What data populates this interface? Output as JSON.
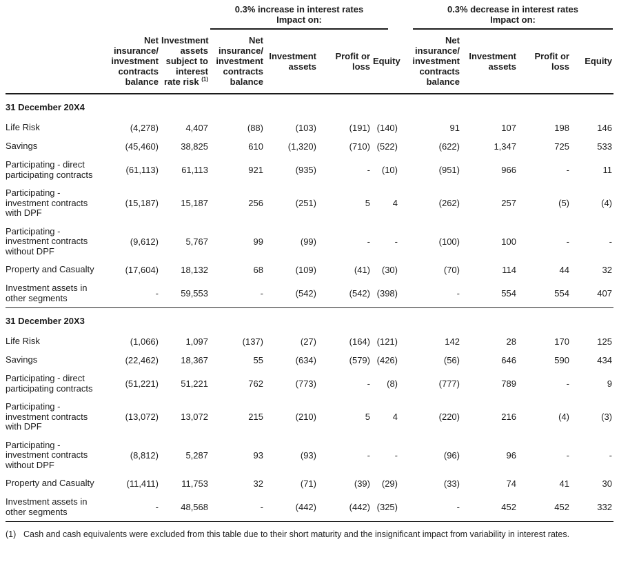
{
  "table": {
    "group_headers": [
      {
        "title": "0.3% increase in interest rates",
        "subtitle": "Impact on:"
      },
      {
        "title": "0.3% decrease in interest rates",
        "subtitle": "Impact on:"
      }
    ],
    "columns": [
      {
        "id": "net-insurance-investment-contracts-balance-base",
        "label": "Net insurance/ investment contracts balance",
        "sup": ""
      },
      {
        "id": "investment-assets-subject-to-interest-rate-risk",
        "label": "Investment assets subject to interest rate risk",
        "sup": "(1)"
      },
      {
        "id": "net-insurance-investment-contracts-balance-increase",
        "label": "Net insurance/ investment contracts balance",
        "sup": ""
      },
      {
        "id": "investment-assets-increase",
        "label": "Investment assets",
        "sup": ""
      },
      {
        "id": "profit-or-loss-increase",
        "label": "Profit or loss",
        "sup": ""
      },
      {
        "id": "equity-increase",
        "label": "Equity",
        "sup": ""
      },
      {
        "id": "net-insurance-investment-contracts-balance-decrease",
        "label": "Net insurance/ investment contracts balance",
        "sup": ""
      },
      {
        "id": "investment-assets-decrease",
        "label": "Investment assets",
        "sup": ""
      },
      {
        "id": "profit-or-loss-decrease",
        "label": "Profit or loss",
        "sup": ""
      },
      {
        "id": "equity-decrease",
        "label": "Equity",
        "sup": ""
      }
    ],
    "sections": [
      {
        "title": "31 December 20X4",
        "rows": [
          {
            "label": "Life Risk",
            "values": [
              "(4,278)",
              "4,407",
              "(88)",
              "(103)",
              "(191)",
              "(140)",
              "91",
              "107",
              "198",
              "146"
            ]
          },
          {
            "label": "Savings",
            "values": [
              "(45,460)",
              "38,825",
              "610",
              "(1,320)",
              "(710)",
              "(522)",
              "(622)",
              "1,347",
              "725",
              "533"
            ]
          },
          {
            "label": "Participating - direct participating contracts",
            "values": [
              "(61,113)",
              "61,113",
              "921",
              "(935)",
              "-",
              "(10)",
              "(951)",
              "966",
              "-",
              "11"
            ]
          },
          {
            "label": "Participating - investment contracts with DPF",
            "values": [
              "(15,187)",
              "15,187",
              "256",
              "(251)",
              "5",
              "4",
              "(262)",
              "257",
              "(5)",
              "(4)"
            ]
          },
          {
            "label": "Participating - investment contracts without DPF",
            "values": [
              "(9,612)",
              "5,767",
              "99",
              "(99)",
              "-",
              "-",
              "(100)",
              "100",
              "-",
              "-"
            ]
          },
          {
            "label": "Property and Casualty",
            "values": [
              "(17,604)",
              "18,132",
              "68",
              "(109)",
              "(41)",
              "(30)",
              "(70)",
              "114",
              "44",
              "32"
            ]
          },
          {
            "label": "Investment assets in other segments",
            "values": [
              "-",
              "59,553",
              "-",
              "(542)",
              "(542)",
              "(398)",
              "-",
              "554",
              "554",
              "407"
            ]
          }
        ]
      },
      {
        "title": "31 December 20X3",
        "rows": [
          {
            "label": "Life Risk",
            "values": [
              "(1,066)",
              "1,097",
              "(137)",
              "(27)",
              "(164)",
              "(121)",
              "142",
              "28",
              "170",
              "125"
            ]
          },
          {
            "label": "Savings",
            "values": [
              "(22,462)",
              "18,367",
              "55",
              "(634)",
              "(579)",
              "(426)",
              "(56)",
              "646",
              "590",
              "434"
            ]
          },
          {
            "label": "Participating - direct participating contracts",
            "values": [
              "(51,221)",
              "51,221",
              "762",
              "(773)",
              "-",
              "(8)",
              "(777)",
              "789",
              "-",
              "9"
            ]
          },
          {
            "label": "Participating - investment contracts with DPF",
            "values": [
              "(13,072)",
              "13,072",
              "215",
              "(210)",
              "5",
              "4",
              "(220)",
              "216",
              "(4)",
              "(3)"
            ]
          },
          {
            "label": "Participating - investment contracts without DPF",
            "values": [
              "(8,812)",
              "5,287",
              "93",
              "(93)",
              "-",
              "-",
              "(96)",
              "96",
              "-",
              "-"
            ]
          },
          {
            "label": "Property and Casualty",
            "values": [
              "(11,411)",
              "11,753",
              "32",
              "(71)",
              "(39)",
              "(29)",
              "(33)",
              "74",
              "41",
              "30"
            ]
          },
          {
            "label": "Investment assets in other segments",
            "values": [
              "-",
              "48,568",
              "-",
              "(442)",
              "(442)",
              "(325)",
              "-",
              "452",
              "452",
              "332"
            ]
          }
        ]
      }
    ],
    "footnote": {
      "marker": "(1)",
      "text": "Cash and cash equivalents were excluded from this table due to their short maturity and the insignificant impact from variability in interest rates."
    }
  },
  "colors": {
    "text": "#1c1c1c",
    "background": "#ffffff",
    "rule": "#1c1c1c"
  }
}
